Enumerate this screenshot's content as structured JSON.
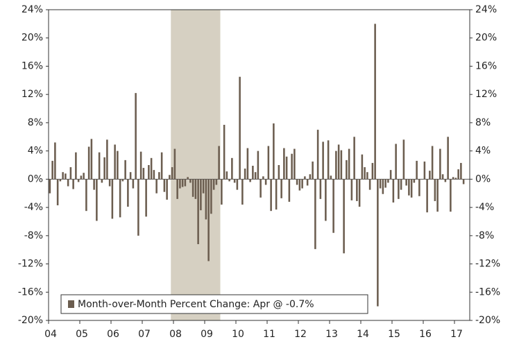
{
  "chart_data": {
    "type": "bar",
    "legend_label": "Month-over-Month Percent Change: Apr @ -0.7%",
    "legend_position": "lower left",
    "color": "#6b5d4f",
    "shade": {
      "start": 47,
      "end": 65,
      "color": "#d6d0c2"
    },
    "categories": [
      "04",
      null,
      null,
      null,
      null,
      null,
      null,
      null,
      null,
      null,
      null,
      null,
      "05",
      null,
      null,
      null,
      null,
      null,
      null,
      null,
      null,
      null,
      null,
      null,
      "06",
      null,
      null,
      null,
      null,
      null,
      null,
      null,
      null,
      null,
      null,
      null,
      "07",
      null,
      null,
      null,
      null,
      null,
      null,
      null,
      null,
      null,
      null,
      null,
      "08",
      null,
      null,
      null,
      null,
      null,
      null,
      null,
      null,
      null,
      null,
      null,
      "09",
      null,
      null,
      null,
      null,
      null,
      null,
      null,
      null,
      null,
      null,
      null,
      "10",
      null,
      null,
      null,
      null,
      null,
      null,
      null,
      null,
      null,
      null,
      null,
      "11",
      null,
      null,
      null,
      null,
      null,
      null,
      null,
      null,
      null,
      null,
      null,
      "12",
      null,
      null,
      null,
      null,
      null,
      null,
      null,
      null,
      null,
      null,
      null,
      "13",
      null,
      null,
      null,
      null,
      null,
      null,
      null,
      null,
      null,
      null,
      null,
      "14",
      null,
      null,
      null,
      null,
      null,
      null,
      null,
      null,
      null,
      null,
      null,
      "15",
      null,
      null,
      null,
      null,
      null,
      null,
      null,
      null,
      null,
      null,
      null,
      "16",
      null,
      null,
      null,
      null,
      null,
      null,
      null,
      null,
      null,
      null,
      null,
      "17",
      null,
      null,
      null
    ],
    "values": [
      -2.0,
      2.6,
      5.2,
      -3.7,
      -0.3,
      1.0,
      0.8,
      -1.0,
      1.7,
      -1.4,
      3.8,
      -0.4,
      0.5,
      0.9,
      -4.5,
      4.6,
      5.7,
      -1.5,
      -5.9,
      3.8,
      -0.5,
      3.1,
      5.6,
      -1.0,
      -5.6,
      4.9,
      4.0,
      -5.4,
      -0.3,
      2.7,
      -3.9,
      1.0,
      -1.3,
      12.2,
      -8.0,
      3.9,
      1.6,
      -5.3,
      2.0,
      3.0,
      1.3,
      -2.0,
      1.0,
      3.8,
      -1.8,
      -2.9,
      0.6,
      1.7,
      4.3,
      -2.8,
      -1.3,
      -1.1,
      -1.0,
      0.3,
      -0.5,
      -2.5,
      -2.8,
      -9.2,
      -4.4,
      -2.0,
      -5.7,
      -11.6,
      -4.9,
      -1.5,
      -0.8,
      4.7,
      -3.6,
      7.7,
      1.1,
      -0.3,
      3.0,
      -0.5,
      -1.5,
      14.5,
      -3.6,
      1.5,
      4.4,
      -0.4,
      1.9,
      1.0,
      4.0,
      -2.6,
      0.4,
      -0.8,
      4.7,
      -4.5,
      7.9,
      -4.3,
      2.0,
      -2.7,
      4.4,
      3.2,
      -3.2,
      3.6,
      4.3,
      -0.8,
      -1.6,
      -1.3,
      0.4,
      -0.9,
      0.7,
      2.5,
      -9.9,
      7.0,
      -2.8,
      5.3,
      -5.9,
      5.5,
      0.5,
      -7.6,
      4.0,
      4.9,
      4.1,
      -10.5,
      2.7,
      4.3,
      -3.0,
      6.0,
      -3.1,
      -3.9,
      3.5,
      1.7,
      1.0,
      -1.5,
      2.3,
      22.0,
      -18.0,
      -1.3,
      -2.1,
      -1.2,
      -0.5,
      1.3,
      -3.3,
      5.0,
      -2.8,
      -1.5,
      5.6,
      -0.9,
      -2.3,
      -2.6,
      -0.5,
      2.6,
      -2.4,
      0.0,
      2.5,
      -4.7,
      1.2,
      4.7,
      -3.1,
      -4.6,
      4.3,
      0.7,
      -0.4,
      6.0,
      -4.6,
      0.3,
      0.2,
      1.4,
      2.3,
      -0.7
    ],
    "ylim": [
      -20,
      24
    ],
    "yticks": [
      {
        "value": -20,
        "label": "-20%"
      },
      {
        "value": -16,
        "label": "-16%"
      },
      {
        "value": -12,
        "label": "-12%"
      },
      {
        "value": -8,
        "label": "-8%"
      },
      {
        "value": -4,
        "label": "-4%"
      },
      {
        "value": 0,
        "label": "0%"
      },
      {
        "value": 4,
        "label": "4%"
      },
      {
        "value": 8,
        "label": "8%"
      },
      {
        "value": 12,
        "label": "12%"
      },
      {
        "value": 16,
        "label": "16%"
      },
      {
        "value": 20,
        "label": "20%"
      },
      {
        "value": 24,
        "label": "24%"
      }
    ]
  }
}
